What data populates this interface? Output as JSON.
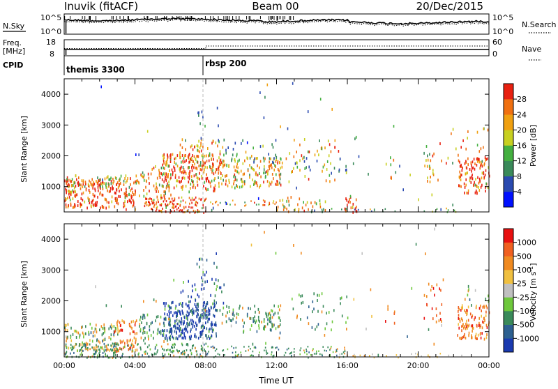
{
  "header": {
    "station": "Inuvik (fitACF)",
    "beam": "Beam 00",
    "date": "20/Dec/2015"
  },
  "panels": {
    "nsky": {
      "left_label": "N.Sky",
      "right_label": "N.Search",
      "tick_top": "10^5",
      "tick_bottom": "10^0"
    },
    "freq": {
      "left_label_1": "Freq.",
      "left_label_2": "[MHz]",
      "right_label": "Nave",
      "left_ticks": [
        "18",
        "8"
      ],
      "right_ticks": [
        "60",
        "0"
      ]
    },
    "cpid": {
      "label": "CPID",
      "segments": [
        {
          "name": "themis 3300",
          "start_hour": 0
        },
        {
          "name": "rbsp 200",
          "start_hour": 8
        }
      ]
    }
  },
  "chart_data": [
    {
      "type": "heatmap",
      "title": "",
      "xlabel": "",
      "ylabel": "Slant Range [km]",
      "x_range_hours": [
        0,
        24
      ],
      "ylim": [
        180,
        4500
      ],
      "y_ticks": [
        "1000",
        "2000",
        "3000",
        "4000"
      ],
      "colorbar": {
        "label": "Power [dB]",
        "tick_labels": [
          "4",
          "8",
          "12",
          "16",
          "20",
          "24",
          "28"
        ],
        "colors": [
          "#0010ff",
          "#2a4ab0",
          "#3a8a5a",
          "#44b040",
          "#c8d020",
          "#f0a010",
          "#f07010",
          "#e82010"
        ]
      }
    },
    {
      "type": "heatmap",
      "title": "",
      "xlabel": "Time UT",
      "ylabel": "Slant Range [km]",
      "x_range_hours": [
        0,
        24
      ],
      "ylim": [
        180,
        4500
      ],
      "y_ticks": [
        "1000",
        "2000",
        "3000",
        "4000"
      ],
      "x_ticks": [
        "00:00",
        "04:00",
        "08:00",
        "12:00",
        "16:00",
        "20:00",
        "00:00"
      ],
      "colorbar": {
        "label": "Velocity [m s",
        "label_sup": "-1",
        "label_end": "]",
        "tick_labels": [
          "1000",
          "500",
          "100",
          "25",
          "-25",
          "-100",
          "-500",
          "-1000"
        ],
        "colors": [
          "#1a3ab0",
          "#2d6090",
          "#3a8a5a",
          "#6ec83c",
          "#c0c0c0",
          "#f0c040",
          "#f08a20",
          "#f06020",
          "#e81010"
        ]
      }
    }
  ]
}
